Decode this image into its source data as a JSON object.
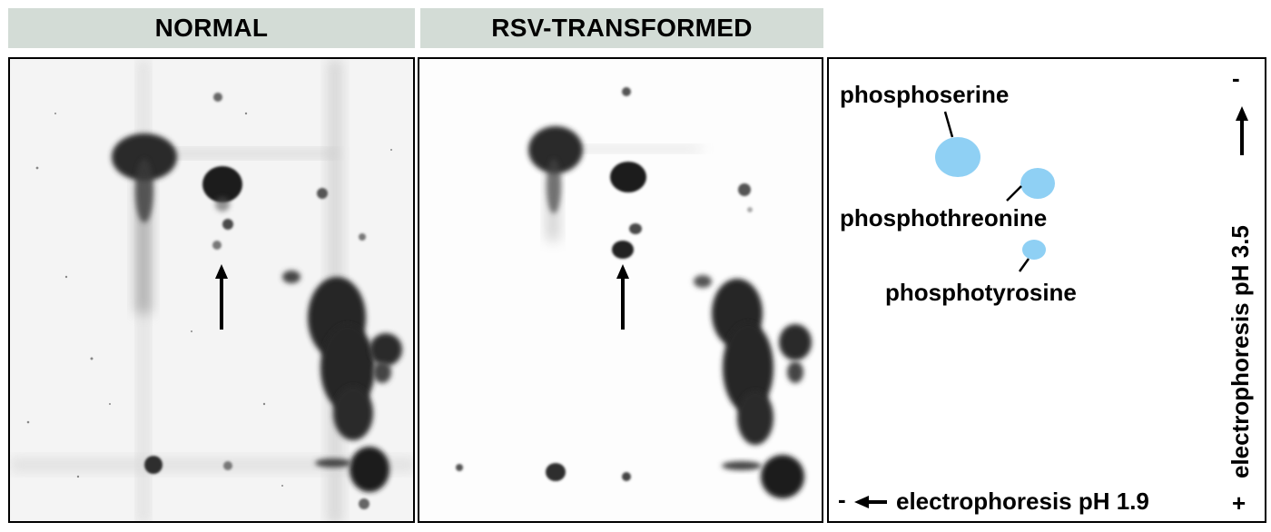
{
  "headers": {
    "normal": "NORMAL",
    "rsv": "RSV-TRANSFORMED"
  },
  "key": {
    "phosphoserine": "phosphoserine",
    "phosphothreonine": "phosphothreonine",
    "phosphotyrosine": "phosphotyrosine",
    "axis_x_label": "electrophoresis pH 1.9",
    "axis_y_label": "electrophoresis pH 3.5",
    "minus": "-",
    "plus": "+",
    "spot_color": "#8fd0f4"
  }
}
